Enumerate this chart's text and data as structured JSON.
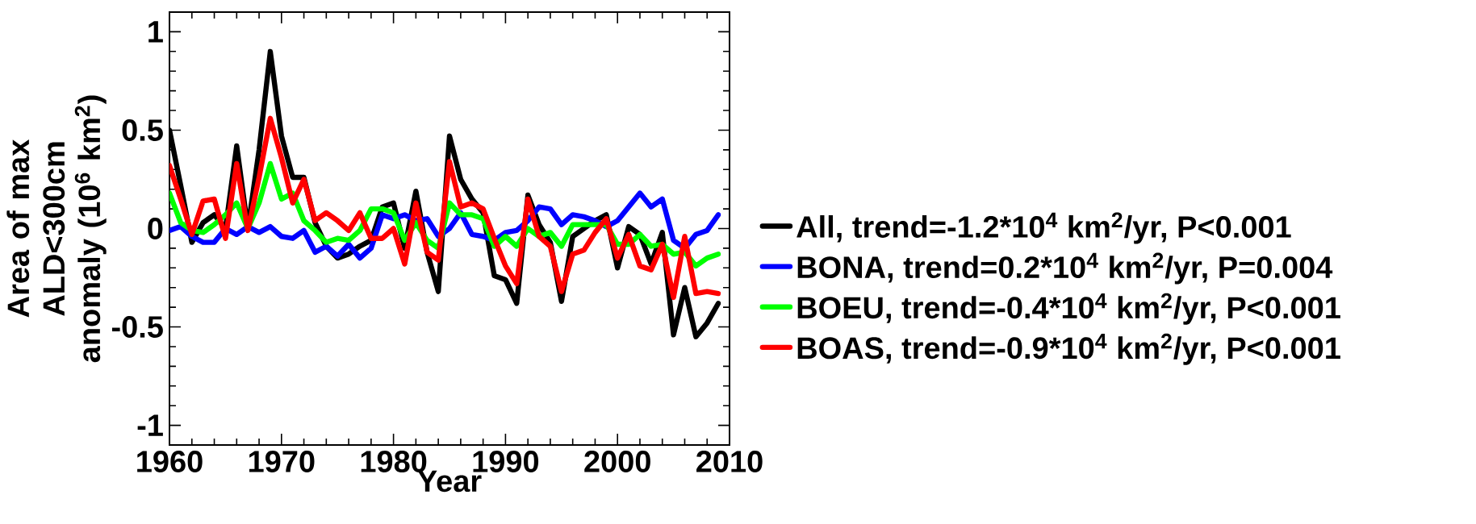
{
  "chart_data": {
    "type": "line",
    "xlabel": "Year",
    "ylabel": "Area of max ALD<300cm anomaly (10$^{6}$ km$^{2}$)",
    "x": [
      1960,
      1961,
      1962,
      1963,
      1964,
      1965,
      1966,
      1967,
      1968,
      1969,
      1970,
      1971,
      1972,
      1973,
      1974,
      1975,
      1976,
      1977,
      1978,
      1979,
      1980,
      1981,
      1982,
      1983,
      1984,
      1985,
      1986,
      1987,
      1988,
      1989,
      1990,
      1991,
      1992,
      1993,
      1994,
      1995,
      1996,
      1997,
      1998,
      1999,
      2000,
      2001,
      2002,
      2003,
      2004,
      2005,
      2006,
      2007,
      2008,
      2009
    ],
    "series": [
      {
        "name": "All, trend=-1.2*10$^{4}$ km$^{2}$/yr, P<0.001",
        "color": "#000000",
        "values": [
          0.5,
          0.22,
          -0.07,
          0.03,
          0.07,
          0.0,
          0.42,
          0.0,
          0.4,
          0.9,
          0.47,
          0.26,
          0.26,
          0.03,
          -0.09,
          -0.15,
          -0.13,
          -0.09,
          -0.06,
          0.11,
          0.13,
          -0.1,
          0.19,
          -0.12,
          -0.32,
          0.47,
          0.25,
          0.15,
          0.08,
          -0.24,
          -0.26,
          -0.38,
          0.17,
          0.02,
          -0.07,
          -0.37,
          -0.04,
          0.0,
          0.04,
          0.07,
          -0.2,
          0.01,
          -0.03,
          -0.18,
          -0.02,
          -0.54,
          -0.3,
          -0.55,
          -0.48,
          -0.38
        ]
      },
      {
        "name": "BONA, trend=0.2*10$^{4}$ km$^{2}$/yr, P=0.004",
        "color": "#0000ff",
        "values": [
          -0.01,
          0.01,
          -0.04,
          -0.07,
          -0.07,
          0.0,
          -0.03,
          0.01,
          -0.02,
          0.01,
          -0.04,
          -0.05,
          -0.01,
          -0.12,
          -0.09,
          -0.14,
          -0.08,
          -0.15,
          -0.1,
          0.07,
          0.05,
          0.07,
          0.04,
          0.05,
          -0.04,
          0.0,
          0.08,
          -0.03,
          -0.04,
          -0.06,
          -0.02,
          -0.01,
          0.04,
          0.11,
          0.1,
          0.02,
          0.07,
          0.06,
          0.04,
          0.01,
          0.04,
          0.11,
          0.18,
          0.11,
          0.15,
          -0.06,
          -0.1,
          -0.03,
          -0.01,
          0.07
        ]
      },
      {
        "name": "BOEU, trend=-0.4*10$^{4}$ km$^{2}$/yr, P<0.001",
        "color": "#00ff00",
        "values": [
          0.18,
          0.03,
          -0.01,
          -0.02,
          0.02,
          0.07,
          0.13,
          0.0,
          0.13,
          0.33,
          0.15,
          0.18,
          0.04,
          -0.01,
          -0.07,
          -0.05,
          -0.06,
          -0.01,
          0.1,
          0.1,
          0.08,
          -0.06,
          0.03,
          -0.06,
          -0.1,
          0.13,
          0.07,
          0.07,
          0.05,
          -0.09,
          -0.04,
          -0.09,
          0.0,
          -0.04,
          -0.02,
          -0.09,
          0.02,
          0.02,
          0.02,
          0.02,
          -0.08,
          -0.08,
          -0.03,
          -0.09,
          -0.08,
          -0.13,
          -0.12,
          -0.19,
          -0.15,
          -0.13
        ]
      },
      {
        "name": "BOAS, trend=-0.9*10$^{4}$ km$^{2}$/yr, P<0.001",
        "color": "#ff0000",
        "values": [
          0.32,
          0.15,
          -0.03,
          0.14,
          0.15,
          -0.05,
          0.33,
          -0.01,
          0.26,
          0.56,
          0.36,
          0.13,
          0.25,
          0.04,
          0.08,
          0.04,
          -0.01,
          0.08,
          -0.05,
          -0.05,
          0.0,
          -0.18,
          0.13,
          -0.12,
          -0.16,
          0.34,
          0.11,
          0.13,
          0.1,
          -0.05,
          -0.19,
          -0.28,
          0.15,
          -0.04,
          -0.09,
          -0.32,
          -0.13,
          -0.11,
          -0.02,
          0.05,
          -0.15,
          -0.03,
          -0.19,
          -0.21,
          -0.08,
          -0.35,
          -0.04,
          -0.33,
          -0.32,
          -0.33
        ]
      }
    ],
    "xlim": [
      1960,
      2010
    ],
    "ylim": [
      -1.1,
      1.1
    ],
    "xticks": [
      1960,
      1970,
      1980,
      1990,
      2000,
      2010
    ],
    "yticks": [
      -1,
      -0.5,
      0,
      0.5,
      1
    ],
    "legend": "right",
    "marker": "none",
    "line_style": "solid"
  }
}
